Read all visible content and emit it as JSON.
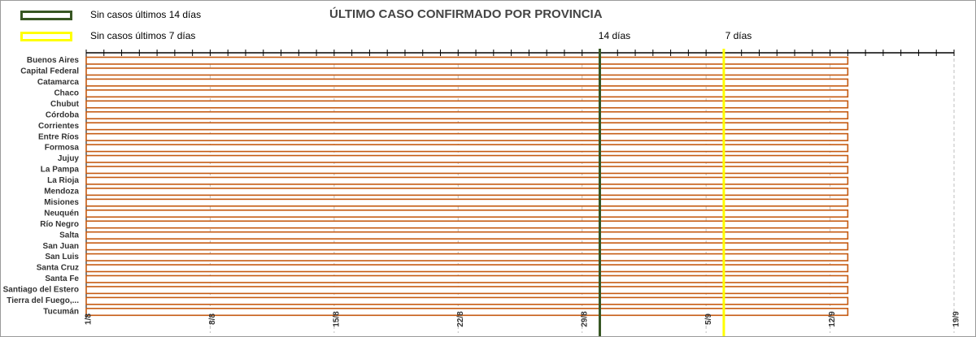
{
  "title": "ÚLTIMO CASO CONFIRMADO POR PROVINCIA",
  "legend": [
    {
      "label": "Sin casos últimos 14 días",
      "color": "#375623"
    },
    {
      "label": "Sin casos últimos 7 días",
      "color": "#ffff00"
    }
  ],
  "chart_data": {
    "type": "bar",
    "orientation": "horizontal",
    "start_axis_value": "1/8",
    "categories": [
      "Buenos Aires",
      "Capital Federal",
      "Catamarca",
      "Chaco",
      "Chubut",
      "Córdoba",
      "Corrientes",
      "Entre Ríos",
      "Formosa",
      "Jujuy",
      "La Pampa",
      "La Rioja",
      "Mendoza",
      "Misiones",
      "Neuquén",
      "Río Negro",
      "Salta",
      "San Juan",
      "San Luis",
      "Santa Cruz",
      "Santa Fe",
      "Santiago del Estero",
      "Tierra del Fuego,...",
      "Tucumán"
    ],
    "values": [
      "13/9",
      "13/9",
      "13/9",
      "13/9",
      "13/9",
      "13/9",
      "13/9",
      "13/9",
      "13/9",
      "13/9",
      "13/9",
      "13/9",
      "13/9",
      "13/9",
      "13/9",
      "13/9",
      "13/9",
      "13/9",
      "13/9",
      "13/9",
      "13/9",
      "13/9",
      "13/9",
      "13/9"
    ],
    "x_ticks": [
      "1/8",
      "8/8",
      "15/8",
      "22/8",
      "29/8",
      "5/9",
      "12/9",
      "19/9"
    ],
    "x_range": [
      "1/8",
      "19/9"
    ],
    "reference_lines": [
      {
        "label": "14 días",
        "x": "30/8",
        "color": "#375623"
      },
      {
        "label": "7 días",
        "x": "6/9",
        "color": "#ffff00"
      }
    ],
    "bar_color": "#c55a11",
    "grid": "vertical major gridlines, dashed"
  }
}
